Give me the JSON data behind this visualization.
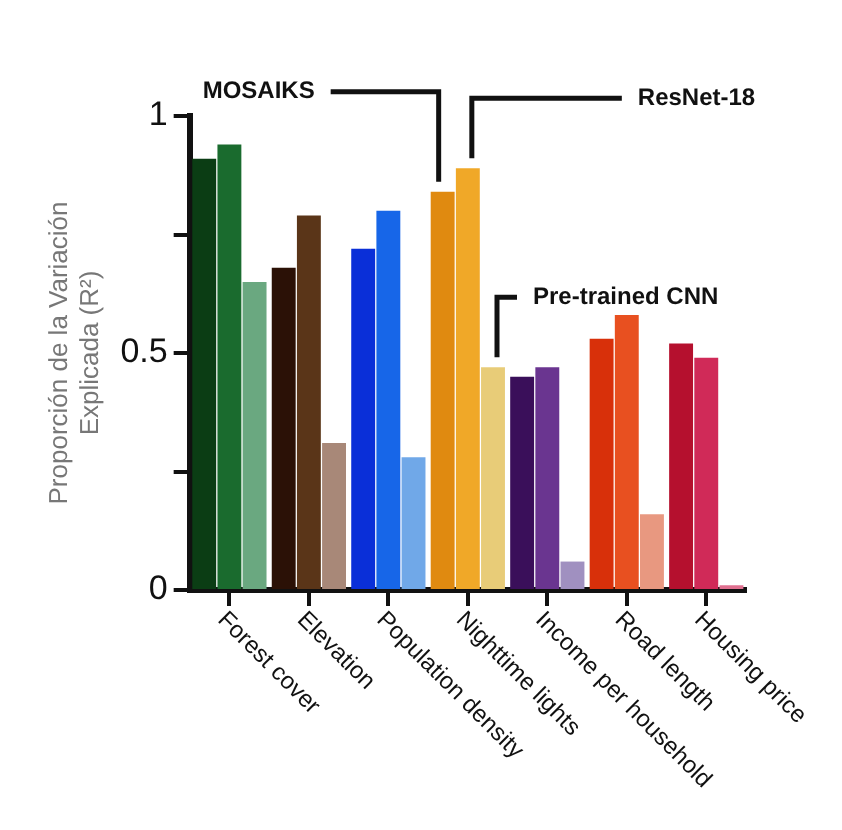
{
  "chart_data": {
    "type": "bar",
    "ylabel": "Proporción de la Variación Explicada (R²)",
    "categories": [
      "Forest cover",
      "Elevation",
      "Population density",
      "Nighttime lights",
      "Income per household",
      "Road length",
      "Housing price"
    ],
    "series": [
      {
        "name": "MOSAIKS",
        "colors": [
          "#0b3d14",
          "#2b1106",
          "#0a2fd8",
          "#e08a10",
          "#3a0f5a",
          "#d8300a",
          "#b5102e"
        ],
        "values": [
          0.91,
          0.68,
          0.72,
          0.84,
          0.45,
          0.53,
          0.52
        ]
      },
      {
        "name": "ResNet-18",
        "colors": [
          "#1a6b2e",
          "#5a3518",
          "#1766e8",
          "#f0a828",
          "#6a3590",
          "#e85020",
          "#d02a58"
        ],
        "values": [
          0.94,
          0.79,
          0.8,
          0.89,
          0.47,
          0.58,
          0.49
        ]
      },
      {
        "name": "Pre-trained CNN",
        "colors": [
          "#6aa880",
          "#a88878",
          "#70a8e8",
          "#e8cc78",
          "#a090c0",
          "#e89880",
          "#e07090"
        ],
        "values": [
          0.65,
          0.31,
          0.28,
          0.47,
          0.06,
          0.16,
          0.01
        ]
      }
    ],
    "ylim": [
      0,
      1
    ],
    "yticks": [
      0,
      {
        "value": 0.25,
        "label": null
      },
      0.5,
      {
        "value": 0.75,
        "label": null
      },
      1
    ],
    "grid": false,
    "legend": false
  }
}
